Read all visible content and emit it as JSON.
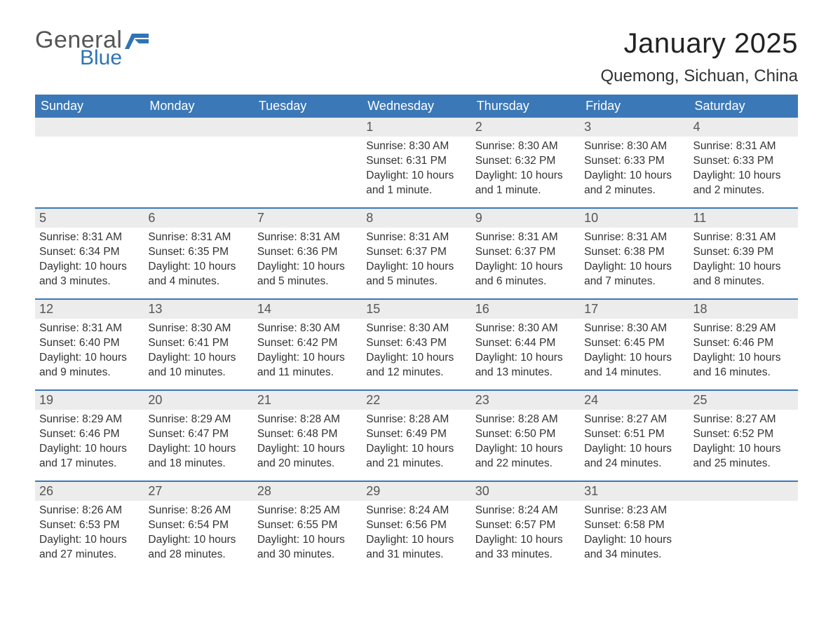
{
  "logo": {
    "word1": "General",
    "word2": "Blue"
  },
  "title": "January 2025",
  "location": "Quemong, Sichuan, China",
  "colors": {
    "header_bg": "#3b78b8",
    "header_text": "#ffffff",
    "daynum_bg": "#ececec",
    "daynum_text": "#555555",
    "body_text": "#333333",
    "rule": "#3b78b8",
    "logo_gray": "#555555",
    "logo_blue": "#2f74b5",
    "page_bg": "#ffffff"
  },
  "typography": {
    "title_fontsize": 40,
    "location_fontsize": 24,
    "weekday_fontsize": 18,
    "daynum_fontsize": 18,
    "body_fontsize": 15.5,
    "font_family": "Arial, Helvetica, sans-serif"
  },
  "weekdays": [
    "Sunday",
    "Monday",
    "Tuesday",
    "Wednesday",
    "Thursday",
    "Friday",
    "Saturday"
  ],
  "weeks": [
    [
      null,
      null,
      null,
      {
        "n": "1",
        "sunrise": "Sunrise: 8:30 AM",
        "sunset": "Sunset: 6:31 PM",
        "dl1": "Daylight: 10 hours",
        "dl2": "and 1 minute."
      },
      {
        "n": "2",
        "sunrise": "Sunrise: 8:30 AM",
        "sunset": "Sunset: 6:32 PM",
        "dl1": "Daylight: 10 hours",
        "dl2": "and 1 minute."
      },
      {
        "n": "3",
        "sunrise": "Sunrise: 8:30 AM",
        "sunset": "Sunset: 6:33 PM",
        "dl1": "Daylight: 10 hours",
        "dl2": "and 2 minutes."
      },
      {
        "n": "4",
        "sunrise": "Sunrise: 8:31 AM",
        "sunset": "Sunset: 6:33 PM",
        "dl1": "Daylight: 10 hours",
        "dl2": "and 2 minutes."
      }
    ],
    [
      {
        "n": "5",
        "sunrise": "Sunrise: 8:31 AM",
        "sunset": "Sunset: 6:34 PM",
        "dl1": "Daylight: 10 hours",
        "dl2": "and 3 minutes."
      },
      {
        "n": "6",
        "sunrise": "Sunrise: 8:31 AM",
        "sunset": "Sunset: 6:35 PM",
        "dl1": "Daylight: 10 hours",
        "dl2": "and 4 minutes."
      },
      {
        "n": "7",
        "sunrise": "Sunrise: 8:31 AM",
        "sunset": "Sunset: 6:36 PM",
        "dl1": "Daylight: 10 hours",
        "dl2": "and 5 minutes."
      },
      {
        "n": "8",
        "sunrise": "Sunrise: 8:31 AM",
        "sunset": "Sunset: 6:37 PM",
        "dl1": "Daylight: 10 hours",
        "dl2": "and 5 minutes."
      },
      {
        "n": "9",
        "sunrise": "Sunrise: 8:31 AM",
        "sunset": "Sunset: 6:37 PM",
        "dl1": "Daylight: 10 hours",
        "dl2": "and 6 minutes."
      },
      {
        "n": "10",
        "sunrise": "Sunrise: 8:31 AM",
        "sunset": "Sunset: 6:38 PM",
        "dl1": "Daylight: 10 hours",
        "dl2": "and 7 minutes."
      },
      {
        "n": "11",
        "sunrise": "Sunrise: 8:31 AM",
        "sunset": "Sunset: 6:39 PM",
        "dl1": "Daylight: 10 hours",
        "dl2": "and 8 minutes."
      }
    ],
    [
      {
        "n": "12",
        "sunrise": "Sunrise: 8:31 AM",
        "sunset": "Sunset: 6:40 PM",
        "dl1": "Daylight: 10 hours",
        "dl2": "and 9 minutes."
      },
      {
        "n": "13",
        "sunrise": "Sunrise: 8:30 AM",
        "sunset": "Sunset: 6:41 PM",
        "dl1": "Daylight: 10 hours",
        "dl2": "and 10 minutes."
      },
      {
        "n": "14",
        "sunrise": "Sunrise: 8:30 AM",
        "sunset": "Sunset: 6:42 PM",
        "dl1": "Daylight: 10 hours",
        "dl2": "and 11 minutes."
      },
      {
        "n": "15",
        "sunrise": "Sunrise: 8:30 AM",
        "sunset": "Sunset: 6:43 PM",
        "dl1": "Daylight: 10 hours",
        "dl2": "and 12 minutes."
      },
      {
        "n": "16",
        "sunrise": "Sunrise: 8:30 AM",
        "sunset": "Sunset: 6:44 PM",
        "dl1": "Daylight: 10 hours",
        "dl2": "and 13 minutes."
      },
      {
        "n": "17",
        "sunrise": "Sunrise: 8:30 AM",
        "sunset": "Sunset: 6:45 PM",
        "dl1": "Daylight: 10 hours",
        "dl2": "and 14 minutes."
      },
      {
        "n": "18",
        "sunrise": "Sunrise: 8:29 AM",
        "sunset": "Sunset: 6:46 PM",
        "dl1": "Daylight: 10 hours",
        "dl2": "and 16 minutes."
      }
    ],
    [
      {
        "n": "19",
        "sunrise": "Sunrise: 8:29 AM",
        "sunset": "Sunset: 6:46 PM",
        "dl1": "Daylight: 10 hours",
        "dl2": "and 17 minutes."
      },
      {
        "n": "20",
        "sunrise": "Sunrise: 8:29 AM",
        "sunset": "Sunset: 6:47 PM",
        "dl1": "Daylight: 10 hours",
        "dl2": "and 18 minutes."
      },
      {
        "n": "21",
        "sunrise": "Sunrise: 8:28 AM",
        "sunset": "Sunset: 6:48 PM",
        "dl1": "Daylight: 10 hours",
        "dl2": "and 20 minutes."
      },
      {
        "n": "22",
        "sunrise": "Sunrise: 8:28 AM",
        "sunset": "Sunset: 6:49 PM",
        "dl1": "Daylight: 10 hours",
        "dl2": "and 21 minutes."
      },
      {
        "n": "23",
        "sunrise": "Sunrise: 8:28 AM",
        "sunset": "Sunset: 6:50 PM",
        "dl1": "Daylight: 10 hours",
        "dl2": "and 22 minutes."
      },
      {
        "n": "24",
        "sunrise": "Sunrise: 8:27 AM",
        "sunset": "Sunset: 6:51 PM",
        "dl1": "Daylight: 10 hours",
        "dl2": "and 24 minutes."
      },
      {
        "n": "25",
        "sunrise": "Sunrise: 8:27 AM",
        "sunset": "Sunset: 6:52 PM",
        "dl1": "Daylight: 10 hours",
        "dl2": "and 25 minutes."
      }
    ],
    [
      {
        "n": "26",
        "sunrise": "Sunrise: 8:26 AM",
        "sunset": "Sunset: 6:53 PM",
        "dl1": "Daylight: 10 hours",
        "dl2": "and 27 minutes."
      },
      {
        "n": "27",
        "sunrise": "Sunrise: 8:26 AM",
        "sunset": "Sunset: 6:54 PM",
        "dl1": "Daylight: 10 hours",
        "dl2": "and 28 minutes."
      },
      {
        "n": "28",
        "sunrise": "Sunrise: 8:25 AM",
        "sunset": "Sunset: 6:55 PM",
        "dl1": "Daylight: 10 hours",
        "dl2": "and 30 minutes."
      },
      {
        "n": "29",
        "sunrise": "Sunrise: 8:24 AM",
        "sunset": "Sunset: 6:56 PM",
        "dl1": "Daylight: 10 hours",
        "dl2": "and 31 minutes."
      },
      {
        "n": "30",
        "sunrise": "Sunrise: 8:24 AM",
        "sunset": "Sunset: 6:57 PM",
        "dl1": "Daylight: 10 hours",
        "dl2": "and 33 minutes."
      },
      {
        "n": "31",
        "sunrise": "Sunrise: 8:23 AM",
        "sunset": "Sunset: 6:58 PM",
        "dl1": "Daylight: 10 hours",
        "dl2": "and 34 minutes."
      },
      null
    ]
  ]
}
